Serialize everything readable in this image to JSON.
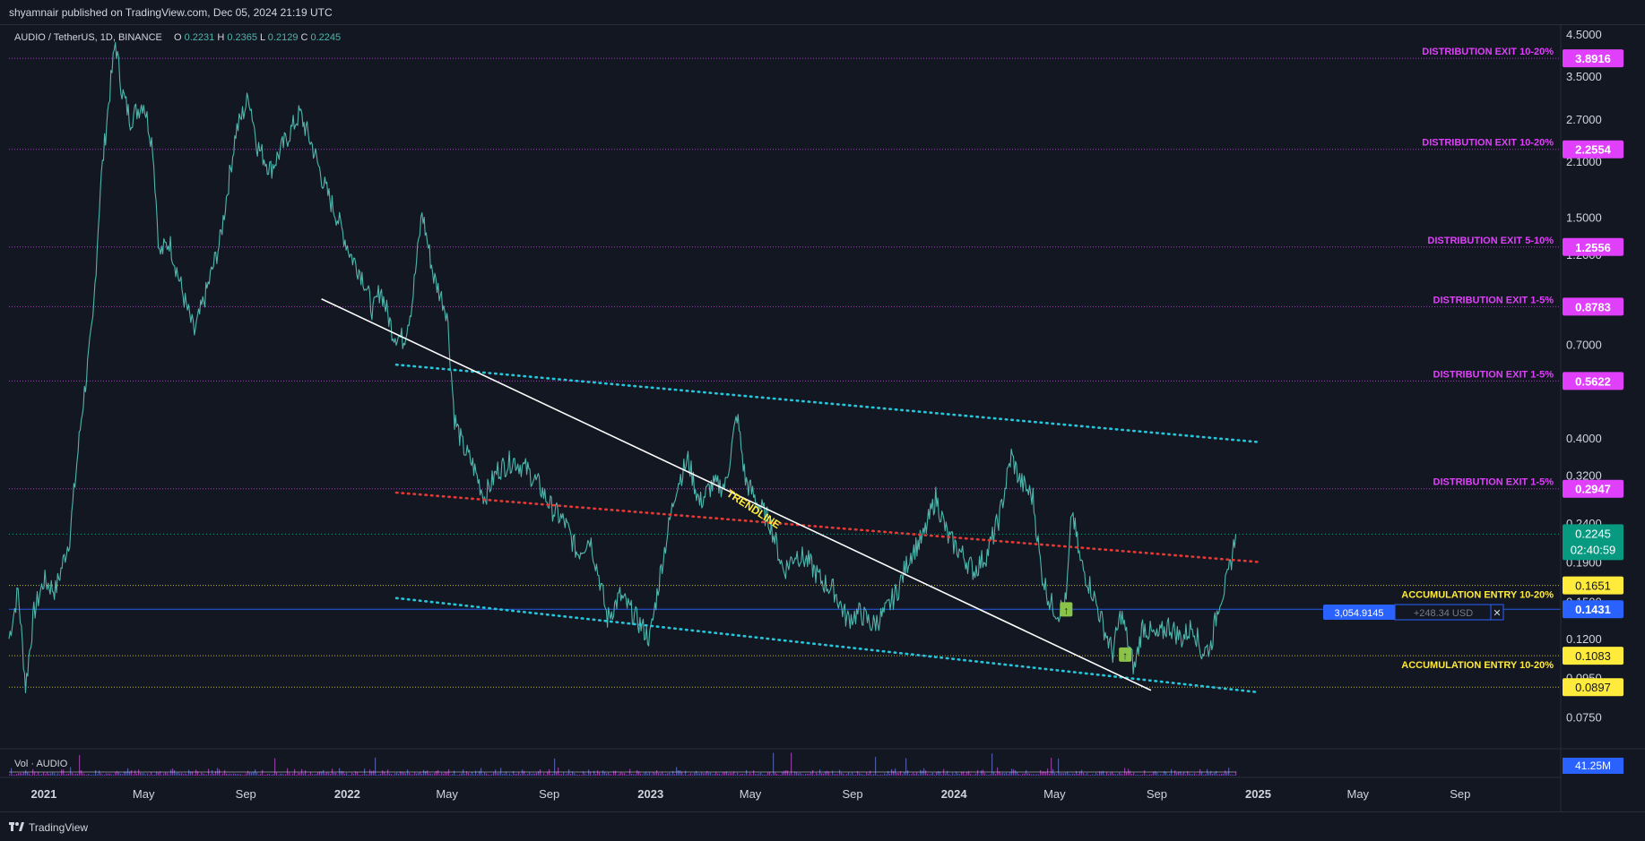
{
  "header": {
    "published": "shyamnair published on TradingView.com, Dec 05, 2024 21:19 UTC"
  },
  "legend": {
    "symbol": "AUDIO / TetherUS, 1D, BINANCE",
    "open_label": "O",
    "open": "0.2231",
    "high_label": "H",
    "high": "0.2365",
    "low_label": "L",
    "low": "0.2129",
    "close_label": "C",
    "close": "0.2245",
    "volume": "Vol · AUDIO"
  },
  "footer": {
    "brand": "TradingView"
  },
  "position": {
    "size": "3,054.9145",
    "pnl": "+248.34 USD",
    "close_glyph": "✕"
  },
  "volume_badge": "41.25M",
  "colors": {
    "background": "#131722",
    "price_line": "#4db6ac",
    "distribution": "#e040fb",
    "accumulation": "#ffeb3b",
    "channel": "#26c6da",
    "trend_red": "#e53935",
    "trendline": "#ffffff",
    "position": "#2962ff",
    "last_price": "#089981"
  },
  "chart_data": {
    "type": "line",
    "scale": "log",
    "y_ticks": [
      "4.5000",
      "3.5000",
      "2.7000",
      "2.1000",
      "1.5000",
      "1.2000",
      "0.9000",
      "0.7000",
      "0.4000",
      "0.3200",
      "0.2400",
      "0.1900",
      "0.1500",
      "0.1200",
      "0.0950",
      "0.0750"
    ],
    "x_ticks": [
      "2021",
      "May",
      "Sep",
      "2022",
      "May",
      "Sep",
      "2023",
      "May",
      "Sep",
      "2024",
      "May",
      "Sep",
      "2025",
      "May",
      "Sep"
    ],
    "x_tick_dates": [
      "2021-01-01",
      "2021-05-01",
      "2021-09-01",
      "2022-01-01",
      "2022-05-01",
      "2022-09-01",
      "2023-01-01",
      "2023-05-01",
      "2023-09-01",
      "2024-01-01",
      "2024-05-01",
      "2024-09-01",
      "2025-01-01",
      "2025-05-01",
      "2025-09-01"
    ],
    "ylim": [
      0.062,
      4.7
    ],
    "xlim": [
      "2020-11-20",
      "2025-12-31"
    ],
    "series": [
      {
        "type": "line",
        "points": [
          [
            "2020-11-20",
            0.12
          ],
          [
            "2020-12-01",
            0.16
          ],
          [
            "2020-12-10",
            0.09
          ],
          [
            "2020-12-20",
            0.14
          ],
          [
            "2021-01-01",
            0.17
          ],
          [
            "2021-01-15",
            0.16
          ],
          [
            "2021-02-01",
            0.22
          ],
          [
            "2021-02-15",
            0.45
          ],
          [
            "2021-03-01",
            0.8
          ],
          [
            "2021-03-10",
            1.8
          ],
          [
            "2021-03-20",
            3.0
          ],
          [
            "2021-03-28",
            4.3
          ],
          [
            "2021-04-05",
            3.2
          ],
          [
            "2021-04-15",
            2.7
          ],
          [
            "2021-05-01",
            3.0
          ],
          [
            "2021-05-12",
            2.3
          ],
          [
            "2021-05-20",
            1.2
          ],
          [
            "2021-06-01",
            1.3
          ],
          [
            "2021-06-20",
            0.9
          ],
          [
            "2021-07-01",
            0.75
          ],
          [
            "2021-07-15",
            0.95
          ],
          [
            "2021-08-01",
            1.3
          ],
          [
            "2021-08-20",
            2.5
          ],
          [
            "2021-09-05",
            3.1
          ],
          [
            "2021-09-15",
            2.3
          ],
          [
            "2021-10-01",
            2.0
          ],
          [
            "2021-10-20",
            2.4
          ],
          [
            "2021-11-05",
            2.8
          ],
          [
            "2021-11-20",
            2.3
          ],
          [
            "2021-12-05",
            1.8
          ],
          [
            "2021-12-20",
            1.5
          ],
          [
            "2022-01-05",
            1.2
          ],
          [
            "2022-01-20",
            1.05
          ],
          [
            "2022-02-01",
            0.85
          ],
          [
            "2022-02-10",
            0.98
          ],
          [
            "2022-02-25",
            0.75
          ],
          [
            "2022-03-10",
            0.72
          ],
          [
            "2022-03-20",
            0.9
          ],
          [
            "2022-04-01",
            1.55
          ],
          [
            "2022-04-15",
            1.05
          ],
          [
            "2022-05-01",
            0.85
          ],
          [
            "2022-05-10",
            0.45
          ],
          [
            "2022-05-20",
            0.38
          ],
          [
            "2022-06-01",
            0.34
          ],
          [
            "2022-06-15",
            0.28
          ],
          [
            "2022-07-01",
            0.33
          ],
          [
            "2022-07-20",
            0.35
          ],
          [
            "2022-08-05",
            0.33
          ],
          [
            "2022-08-20",
            0.3
          ],
          [
            "2022-09-05",
            0.26
          ],
          [
            "2022-09-20",
            0.24
          ],
          [
            "2022-10-05",
            0.2
          ],
          [
            "2022-10-20",
            0.22
          ],
          [
            "2022-11-01",
            0.17
          ],
          [
            "2022-11-10",
            0.135
          ],
          [
            "2022-11-25",
            0.155
          ],
          [
            "2022-12-10",
            0.14
          ],
          [
            "2022-12-31",
            0.12
          ],
          [
            "2023-01-15",
            0.19
          ],
          [
            "2023-02-01",
            0.3
          ],
          [
            "2023-02-15",
            0.35
          ],
          [
            "2023-03-01",
            0.27
          ],
          [
            "2023-03-15",
            0.3
          ],
          [
            "2023-04-01",
            0.3
          ],
          [
            "2023-04-15",
            0.46
          ],
          [
            "2023-04-25",
            0.31
          ],
          [
            "2023-05-10",
            0.27
          ],
          [
            "2023-05-25",
            0.24
          ],
          [
            "2023-06-10",
            0.18
          ],
          [
            "2023-06-25",
            0.2
          ],
          [
            "2023-07-10",
            0.19
          ],
          [
            "2023-07-25",
            0.17
          ],
          [
            "2023-08-10",
            0.16
          ],
          [
            "2023-08-25",
            0.135
          ],
          [
            "2023-09-10",
            0.14
          ],
          [
            "2023-09-25",
            0.13
          ],
          [
            "2023-10-10",
            0.14
          ],
          [
            "2023-10-25",
            0.16
          ],
          [
            "2023-11-10",
            0.2
          ],
          [
            "2023-11-25",
            0.22
          ],
          [
            "2023-12-10",
            0.28
          ],
          [
            "2023-12-25",
            0.22
          ],
          [
            "2024-01-10",
            0.2
          ],
          [
            "2024-01-25",
            0.18
          ],
          [
            "2024-02-10",
            0.2
          ],
          [
            "2024-02-25",
            0.25
          ],
          [
            "2024-03-10",
            0.36
          ],
          [
            "2024-03-20",
            0.31
          ],
          [
            "2024-04-05",
            0.28
          ],
          [
            "2024-04-15",
            0.18
          ],
          [
            "2024-04-25",
            0.15
          ],
          [
            "2024-05-05",
            0.14
          ],
          [
            "2024-05-15",
            0.15
          ],
          [
            "2024-05-22",
            0.26
          ],
          [
            "2024-06-01",
            0.19
          ],
          [
            "2024-06-15",
            0.16
          ],
          [
            "2024-07-01",
            0.125
          ],
          [
            "2024-07-10",
            0.11
          ],
          [
            "2024-07-20",
            0.14
          ],
          [
            "2024-08-05",
            0.1
          ],
          [
            "2024-08-15",
            0.13
          ],
          [
            "2024-09-01",
            0.12
          ],
          [
            "2024-09-15",
            0.13
          ],
          [
            "2024-10-01",
            0.12
          ],
          [
            "2024-10-15",
            0.13
          ],
          [
            "2024-10-25",
            0.11
          ],
          [
            "2024-11-05",
            0.115
          ],
          [
            "2024-11-15",
            0.15
          ],
          [
            "2024-11-25",
            0.17
          ],
          [
            "2024-12-01",
            0.2
          ],
          [
            "2024-12-05",
            0.2245
          ]
        ]
      }
    ],
    "levels": [
      {
        "price": 3.8916,
        "badge": "3.8916",
        "label": "DISTRIBUTION EXIT 10-20%",
        "kind": "distribution"
      },
      {
        "price": 2.2554,
        "badge": "2.2554",
        "label": "DISTRIBUTION EXIT 10-20%",
        "kind": "distribution"
      },
      {
        "price": 1.2556,
        "badge": "1.2556",
        "label": "DISTRIBUTION EXIT 5-10%",
        "kind": "distribution"
      },
      {
        "price": 0.8783,
        "badge": "0.8783",
        "label": "DISTRIBUTION EXIT 1-5%",
        "kind": "distribution"
      },
      {
        "price": 0.5622,
        "badge": "0.5622",
        "label": "DISTRIBUTION EXIT 1-5%",
        "kind": "distribution"
      },
      {
        "price": 0.2947,
        "badge": "0.2947",
        "label": "DISTRIBUTION EXIT 1-5%",
        "kind": "distribution"
      },
      {
        "price": 0.1651,
        "badge": "0.1651",
        "label": "ACCUMULATION ENTRY 10-20%",
        "kind": "accumulation"
      },
      {
        "price": 0.1083,
        "badge": "0.1083",
        "label": "ACCUMULATION ENTRY 10-20%",
        "kind": "accumulation"
      },
      {
        "price": 0.0897,
        "badge": "0.0897",
        "label": "",
        "kind": "accumulation"
      },
      {
        "price": 0.1431,
        "badge": "0.1431",
        "label": "",
        "kind": "position"
      }
    ],
    "last_price": {
      "price": 0.2245,
      "label": "0.2245",
      "countdown": "02:40:59"
    },
    "trendlines": [
      {
        "name": "upper-channel",
        "style": "dotted",
        "color": "#26c6da",
        "from": [
          "2022-03-01",
          0.62
        ],
        "to": [
          "2025-01-01",
          0.39
        ]
      },
      {
        "name": "lower-channel",
        "style": "dotted",
        "color": "#26c6da",
        "from": [
          "2022-03-01",
          0.153
        ],
        "to": [
          "2025-01-01",
          0.087
        ]
      },
      {
        "name": "mid-line",
        "style": "dotted",
        "color": "#e53935",
        "from": [
          "2022-03-01",
          0.288
        ],
        "to": [
          "2025-01-01",
          0.19
        ]
      },
      {
        "name": "trendline",
        "style": "solid",
        "color": "#ffffff",
        "from": [
          "2021-12-01",
          0.92
        ],
        "to": [
          "2024-08-25",
          0.088
        ],
        "label": "TRENDLINE"
      }
    ],
    "markers": [
      {
        "date": "2024-05-15",
        "price": 0.143
      },
      {
        "date": "2024-07-25",
        "price": 0.109
      }
    ]
  }
}
